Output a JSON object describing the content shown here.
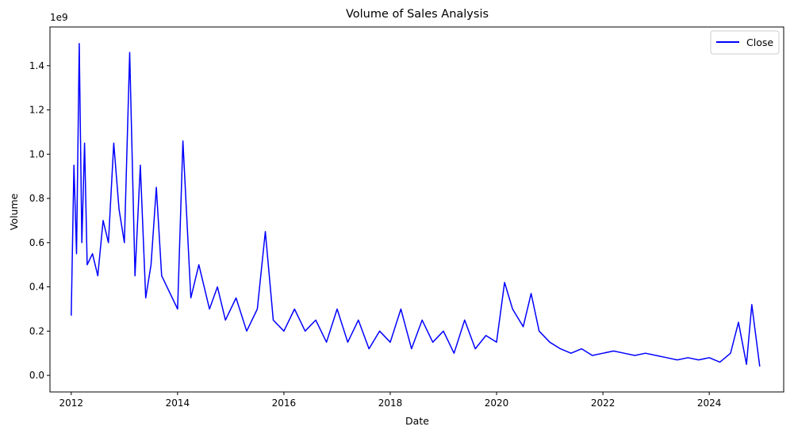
{
  "chart_data": {
    "type": "line",
    "title": "Volume of Sales Analysis",
    "xlabel": "Date",
    "ylabel": "Volume",
    "y_offset_text": "1e9",
    "y_scale": 1000000000,
    "xlim": [
      2011.6,
      2025.4
    ],
    "ylim": [
      -0.075,
      1.575
    ],
    "x_ticks": [
      2012,
      2014,
      2016,
      2018,
      2020,
      2022,
      2024
    ],
    "x_tick_labels": [
      "2012",
      "2014",
      "2016",
      "2018",
      "2020",
      "2022",
      "2024"
    ],
    "y_ticks": [
      0,
      0.2,
      0.4,
      0.6,
      0.8,
      1.0,
      1.2,
      1.4
    ],
    "y_tick_labels": [
      "0.0",
      "0.2",
      "0.4",
      "0.6",
      "0.8",
      "1.0",
      "1.2",
      "1.4"
    ],
    "grid": false,
    "legend": {
      "position": "top-right",
      "entries": [
        "Close"
      ]
    },
    "series": [
      {
        "name": "Close",
        "color": "#0000ff",
        "x": [
          2012.0,
          2012.05,
          2012.1,
          2012.15,
          2012.2,
          2012.25,
          2012.3,
          2012.4,
          2012.5,
          2012.6,
          2012.7,
          2012.8,
          2012.9,
          2013.0,
          2013.1,
          2013.2,
          2013.3,
          2013.4,
          2013.5,
          2013.6,
          2013.7,
          2013.8,
          2013.9,
          2014.0,
          2014.1,
          2014.25,
          2014.4,
          2014.6,
          2014.75,
          2014.9,
          2015.1,
          2015.3,
          2015.5,
          2015.65,
          2015.8,
          2016.0,
          2016.2,
          2016.4,
          2016.6,
          2016.8,
          2017.0,
          2017.2,
          2017.4,
          2017.6,
          2017.8,
          2018.0,
          2018.2,
          2018.4,
          2018.6,
          2018.8,
          2019.0,
          2019.2,
          2019.4,
          2019.6,
          2019.8,
          2020.0,
          2020.15,
          2020.3,
          2020.5,
          2020.65,
          2020.8,
          2021.0,
          2021.2,
          2021.4,
          2021.6,
          2021.8,
          2022.0,
          2022.2,
          2022.4,
          2022.6,
          2022.8,
          2023.0,
          2023.2,
          2023.4,
          2023.6,
          2023.8,
          2024.0,
          2024.2,
          2024.4,
          2024.55,
          2024.7,
          2024.8,
          2024.95
        ],
        "values": [
          0.27,
          0.95,
          0.55,
          1.5,
          0.6,
          1.05,
          0.5,
          0.55,
          0.45,
          0.7,
          0.6,
          1.05,
          0.75,
          0.6,
          1.46,
          0.45,
          0.95,
          0.35,
          0.5,
          0.85,
          0.45,
          0.4,
          0.35,
          0.3,
          1.06,
          0.35,
          0.5,
          0.3,
          0.4,
          0.25,
          0.35,
          0.2,
          0.3,
          0.65,
          0.25,
          0.2,
          0.3,
          0.2,
          0.25,
          0.15,
          0.3,
          0.15,
          0.25,
          0.12,
          0.2,
          0.15,
          0.3,
          0.12,
          0.25,
          0.15,
          0.2,
          0.1,
          0.25,
          0.12,
          0.18,
          0.15,
          0.42,
          0.3,
          0.22,
          0.37,
          0.2,
          0.15,
          0.12,
          0.1,
          0.12,
          0.09,
          0.1,
          0.11,
          0.1,
          0.09,
          0.1,
          0.09,
          0.08,
          0.07,
          0.08,
          0.07,
          0.08,
          0.06,
          0.1,
          0.24,
          0.05,
          0.32,
          0.04
        ]
      }
    ]
  }
}
